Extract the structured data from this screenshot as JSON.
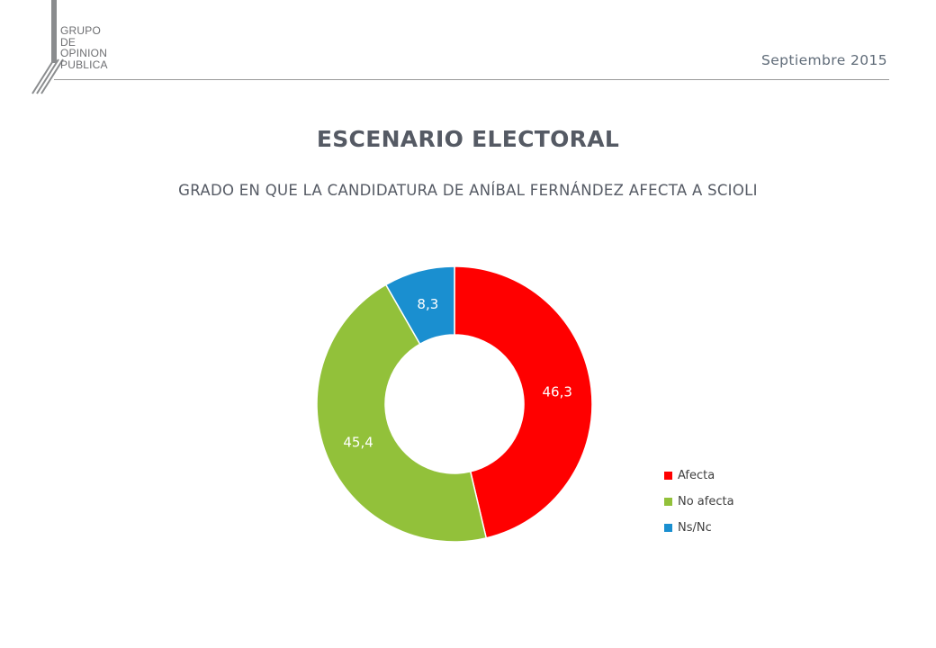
{
  "header": {
    "logo_lines": [
      "GRUPO",
      "DE",
      "OPINION",
      "PUBLICA"
    ],
    "date": "Septiembre 2015"
  },
  "chart_data": {
    "type": "pie",
    "variant": "donut",
    "title": "ESCENARIO ELECTORAL",
    "subtitle": "GRADO EN QUE LA CANDIDATURA DE ANÍBAL FERNÁNDEZ AFECTA A SCIOLI",
    "categories": [
      "Afecta",
      "No afecta",
      "Ns/Nc"
    ],
    "values": [
      46.3,
      45.4,
      8.3
    ],
    "data_labels": [
      "46,3",
      "45,4",
      "8,3"
    ],
    "colors": [
      "#ff0000",
      "#92c13a",
      "#1a8fd0"
    ],
    "legend": "right-bottom"
  }
}
